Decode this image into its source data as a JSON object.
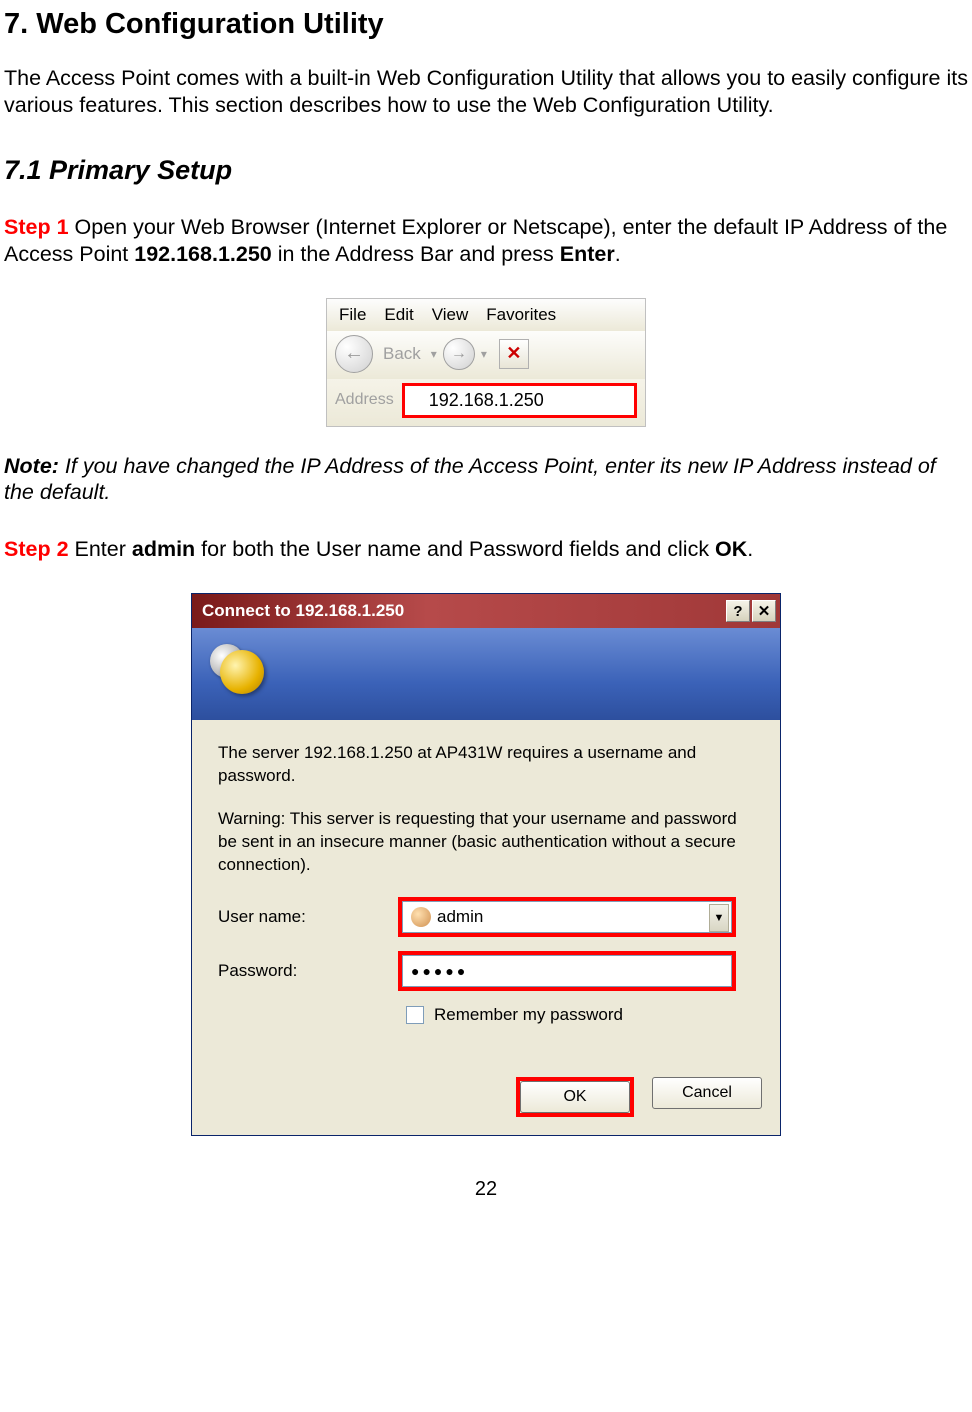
{
  "headings": {
    "main": "7. Web Configuration Utility",
    "sub": "7.1 Primary Setup"
  },
  "paragraphs": {
    "intro": "The Access Point comes with a built-in Web Configuration Utility that allows you to easily configure its various features. This section describes how to use the Web Configuration Utility.",
    "step1_label": "Step 1 ",
    "step1_a": "Open your Web Browser (Internet Explorer or Netscape), enter the default IP Address of the Access Point ",
    "step1_ip": "192.168.1.250",
    "step1_b": " in the Address Bar and press ",
    "step1_c": "Enter",
    "step1_d": ".",
    "note_label": "Note: ",
    "note_text": "If you have changed the IP Address of the Access Point, enter its new IP Address instead of the default.",
    "step2_label": "Step 2 ",
    "step2_a": "Enter ",
    "step2_b": "admin",
    "step2_c": " for both the User name and Password fields and click ",
    "step2_d": "OK",
    "step2_e": "."
  },
  "browser": {
    "menu_file": "File",
    "menu_edit": "Edit",
    "menu_view": "View",
    "menu_fav": "Favorites",
    "back_label": "Back",
    "address_label": "Address",
    "address_value": "192.168.1.250"
  },
  "dialog": {
    "title": "Connect to 192.168.1.250",
    "msg1": "The server 192.168.1.250 at AP431W requires a username and password.",
    "msg2": "Warning: This server is requesting that your username and password be sent in an insecure manner (basic authentication without a secure connection).",
    "user_label": "User name:",
    "user_value": "admin",
    "pass_label": "Password:",
    "pass_value": "●●●●●",
    "remember": "Remember my password",
    "ok": "OK",
    "cancel": "Cancel"
  },
  "page_number": "22",
  "colors": {
    "highlight_red": "#ff0000",
    "step_red": "#ff0000",
    "dialog_bg": "#ece9d8",
    "titlebar_grad_start": "#7a1a1a",
    "banner_blue": "#3b62b8"
  }
}
